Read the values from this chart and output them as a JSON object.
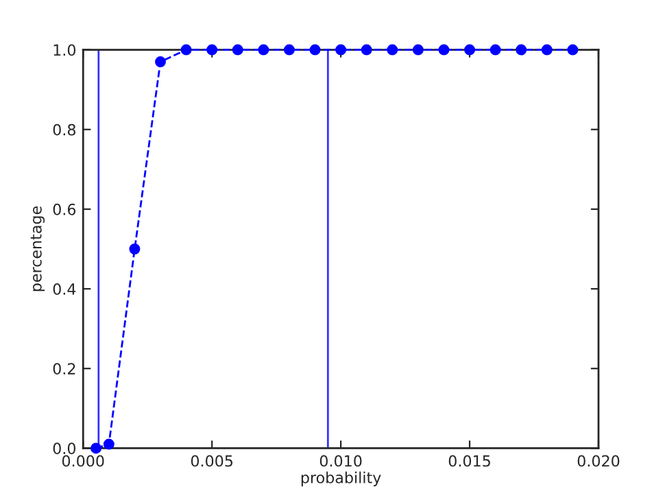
{
  "chart_data": {
    "type": "line",
    "xlabel": "probability",
    "ylabel": "percentage",
    "x": [
      0.0005,
      0.001,
      0.002,
      0.003,
      0.004,
      0.005,
      0.006,
      0.007,
      0.008,
      0.009,
      0.01,
      0.011,
      0.012,
      0.013,
      0.014,
      0.015,
      0.016,
      0.017,
      0.018,
      0.019
    ],
    "series": [
      {
        "color": "#0000ff",
        "values": [
          0.0,
          0.01,
          0.5,
          0.97,
          1.0,
          1.0,
          1.0,
          1.0,
          1.0,
          1.0,
          1.0,
          1.0,
          1.0,
          1.0,
          1.0,
          1.0,
          1.0,
          1.0,
          1.0,
          1.0
        ]
      }
    ],
    "marker": "circle",
    "line_style": "dashed",
    "xlim": [
      0.0,
      0.02
    ],
    "ylim": [
      0.0,
      1.0
    ],
    "xticks": [
      {
        "value": 0.0,
        "label": "0.000"
      },
      0.005,
      {
        "value": 0.01,
        "label": "0.010"
      },
      0.015,
      {
        "value": 0.02,
        "label": "0.020"
      }
    ],
    "yticks": [
      {
        "value": 0.0,
        "label": "0.0"
      },
      0.2,
      0.4,
      0.6,
      0.8,
      {
        "value": 1.0,
        "label": "1.0"
      }
    ],
    "ref_lines": [
      {
        "axis": "x",
        "value": 0.0006,
        "color": "#3333ff"
      },
      {
        "axis": "x",
        "value": 0.0095,
        "color": "#3333ff"
      }
    ],
    "grid": false
  }
}
